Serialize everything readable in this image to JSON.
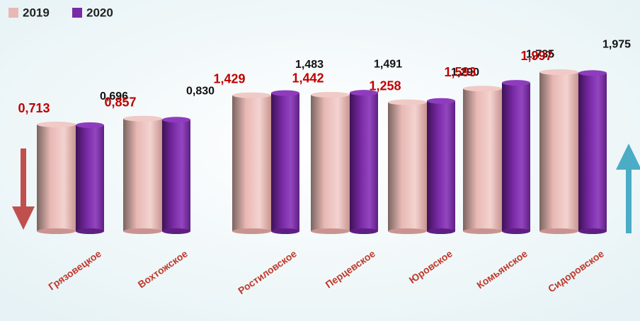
{
  "chart_data": {
    "type": "bar",
    "categories": [
      "Грязовецкое",
      "Вохтожское",
      "Ростиловское",
      "Перцевское",
      "Юровское",
      "Комьянское",
      "Сидоровское"
    ],
    "series": [
      {
        "name": "2019",
        "color": "#e8b8b4",
        "values": [
          0.713,
          0.857,
          1.429,
          1.442,
          1.258,
          1.593,
          1.997
        ],
        "value_labels": [
          "0,713",
          "0,857",
          "1,429",
          "1,442",
          "1,258",
          "1,593",
          "1,997"
        ]
      },
      {
        "name": "2020",
        "color": "#7a2aa6",
        "values": [
          0.696,
          0.83,
          1.483,
          1.491,
          1.29,
          1.735,
          1.975
        ],
        "value_labels": [
          "0,696",
          "0,830",
          "1,483",
          "1,491",
          "1,290",
          "1,735",
          "1,975"
        ]
      }
    ]
  }
}
